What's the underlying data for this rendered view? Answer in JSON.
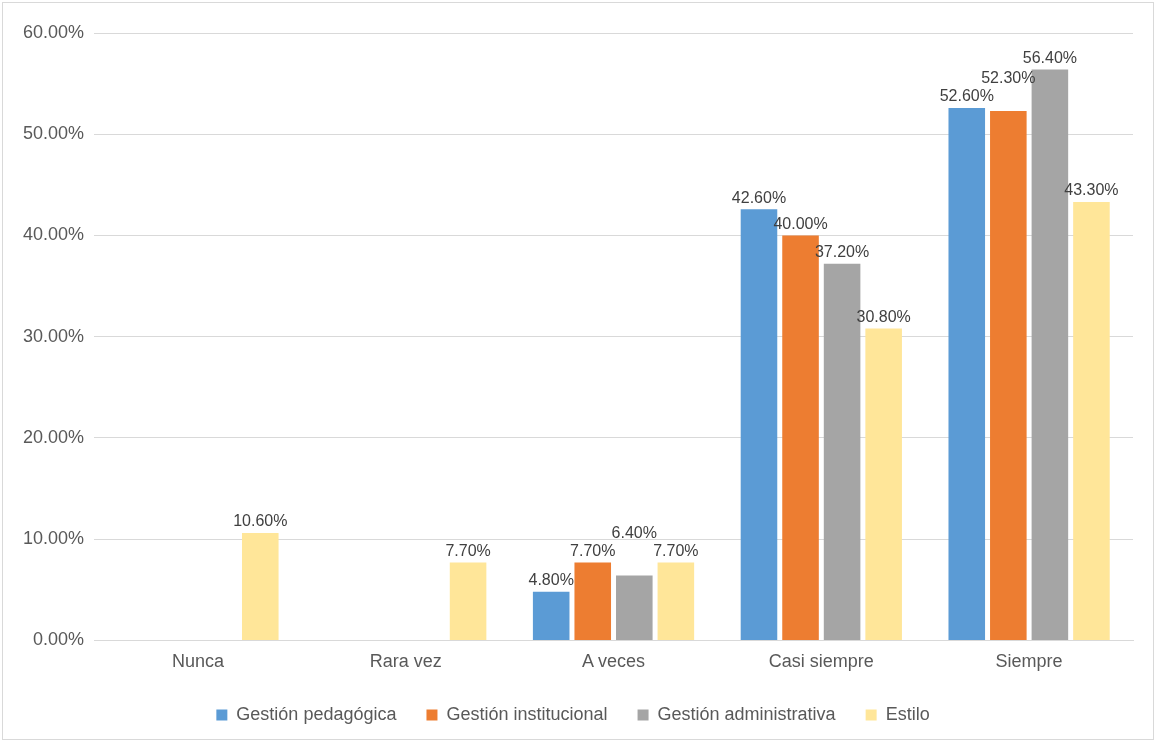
{
  "chart_data": {
    "type": "bar",
    "categories": [
      "Nunca",
      "Rara vez",
      "A veces",
      "Casi siempre",
      "Siempre"
    ],
    "series": [
      {
        "name": "Gestión pedagógica",
        "color": "#5b9bd5",
        "values": [
          null,
          null,
          4.8,
          42.6,
          52.6
        ],
        "value_labels": [
          null,
          null,
          "4.80%",
          "42.60%",
          "52.60%"
        ]
      },
      {
        "name": "Gestión institucional",
        "color": "#ed7d31",
        "values": [
          null,
          null,
          7.7,
          40.0,
          52.3
        ],
        "value_labels": [
          null,
          null,
          "7.70%",
          "40.00%",
          "52.30%"
        ]
      },
      {
        "name": "Gestión administrativa",
        "color": "#a5a5a5",
        "values": [
          null,
          null,
          6.4,
          37.2,
          56.4
        ],
        "value_labels": [
          null,
          null,
          "6.40%",
          "37.20%",
          "56.40%"
        ]
      },
      {
        "name": "Estilo",
        "color": "#ffe699",
        "values": [
          10.6,
          7.7,
          7.7,
          30.8,
          43.3
        ],
        "value_labels": [
          "10.60%",
          "7.70%",
          "7.70%",
          "30.80%",
          "43.30%"
        ]
      }
    ],
    "ylim": [
      0,
      60
    ],
    "yticks": [
      {
        "value": 0,
        "label": "0.00%"
      },
      {
        "value": 10,
        "label": "10.00%"
      },
      {
        "value": 20,
        "label": "20.00%"
      },
      {
        "value": 30,
        "label": "30.00%"
      },
      {
        "value": 40,
        "label": "40.00%"
      },
      {
        "value": 50,
        "label": "50.00%"
      },
      {
        "value": 60,
        "label": "60.00%"
      }
    ],
    "grid": "y",
    "legend": "bottom"
  }
}
